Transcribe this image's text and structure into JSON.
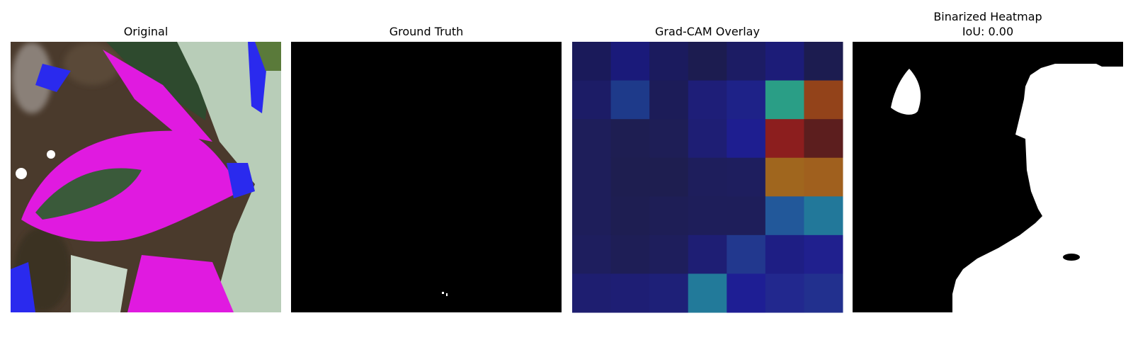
{
  "panels": [
    {
      "title": "Original"
    },
    {
      "title": "Ground Truth"
    },
    {
      "title": "Grad-CAM Overlay"
    },
    {
      "title": "Binarized Heatmap",
      "subtitle": "IoU: 0.00"
    }
  ]
}
